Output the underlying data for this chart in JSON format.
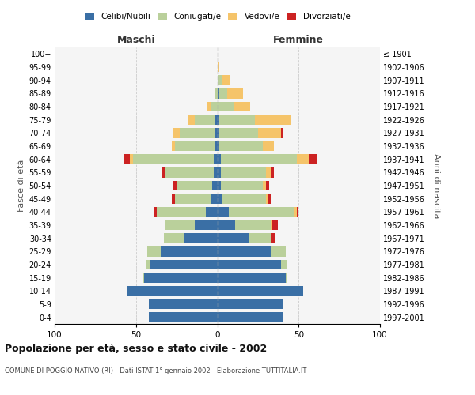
{
  "age_groups": [
    "0-4",
    "5-9",
    "10-14",
    "15-19",
    "20-24",
    "25-29",
    "30-34",
    "35-39",
    "40-44",
    "45-49",
    "50-54",
    "55-59",
    "60-64",
    "65-69",
    "70-74",
    "75-79",
    "80-84",
    "85-89",
    "90-94",
    "95-99",
    "100+"
  ],
  "birth_years": [
    "1997-2001",
    "1992-1996",
    "1987-1991",
    "1982-1986",
    "1977-1981",
    "1972-1976",
    "1967-1971",
    "1962-1966",
    "1957-1961",
    "1952-1956",
    "1947-1951",
    "1942-1946",
    "1937-1941",
    "1932-1936",
    "1927-1931",
    "1922-1926",
    "1917-1921",
    "1912-1916",
    "1907-1911",
    "1902-1906",
    "≤ 1901"
  ],
  "males_celibi": [
    42,
    42,
    55,
    45,
    41,
    35,
    20,
    14,
    7,
    4,
    3,
    2,
    2,
    1,
    1,
    1,
    0,
    0,
    0,
    0,
    0
  ],
  "males_coniugati": [
    0,
    0,
    0,
    1,
    3,
    8,
    13,
    18,
    30,
    22,
    22,
    30,
    50,
    25,
    22,
    13,
    4,
    1,
    0,
    0,
    0
  ],
  "males_vedovi": [
    0,
    0,
    0,
    0,
    0,
    0,
    0,
    0,
    0,
    0,
    0,
    0,
    2,
    2,
    4,
    4,
    2,
    0,
    0,
    0,
    0
  ],
  "males_divorziati": [
    0,
    0,
    0,
    0,
    0,
    0,
    0,
    0,
    2,
    2,
    2,
    2,
    3,
    0,
    0,
    0,
    0,
    0,
    0,
    0,
    0
  ],
  "females_nubili": [
    40,
    40,
    53,
    42,
    39,
    33,
    19,
    11,
    7,
    3,
    2,
    2,
    2,
    1,
    1,
    1,
    0,
    1,
    0,
    0,
    0
  ],
  "females_coniugate": [
    0,
    0,
    0,
    1,
    4,
    9,
    14,
    22,
    40,
    27,
    26,
    28,
    47,
    27,
    24,
    22,
    10,
    5,
    3,
    0,
    0
  ],
  "females_vedove": [
    0,
    0,
    0,
    0,
    0,
    0,
    0,
    1,
    2,
    1,
    2,
    3,
    7,
    7,
    14,
    22,
    10,
    10,
    5,
    1,
    0
  ],
  "females_divorziate": [
    0,
    0,
    0,
    0,
    0,
    0,
    3,
    3,
    1,
    2,
    2,
    2,
    5,
    0,
    1,
    0,
    0,
    0,
    0,
    0,
    0
  ],
  "color_celibi": "#3A6FA5",
  "color_coniugati": "#BAD09B",
  "color_vedovi": "#F5C46A",
  "color_divorziati": "#CC2222",
  "xlim": 100,
  "xticks": [
    -100,
    -50,
    0,
    50,
    100
  ],
  "xticklabels": [
    "100",
    "50",
    "0",
    "50",
    "100"
  ],
  "title": "Popolazione per età, sesso e stato civile - 2002",
  "subtitle": "COMUNE DI POGGIO NATIVO (RI) - Dati ISTAT 1° gennaio 2002 - Elaborazione TUTTITALIA.IT",
  "label_maschi": "Maschi",
  "label_femmine": "Femmine",
  "ylabel_left": "Fasce di età",
  "ylabel_right": "Anni di nascita",
  "bg_plot": "#f5f5f5",
  "bg_fig": "#ffffff",
  "grid_color": "#cccccc"
}
